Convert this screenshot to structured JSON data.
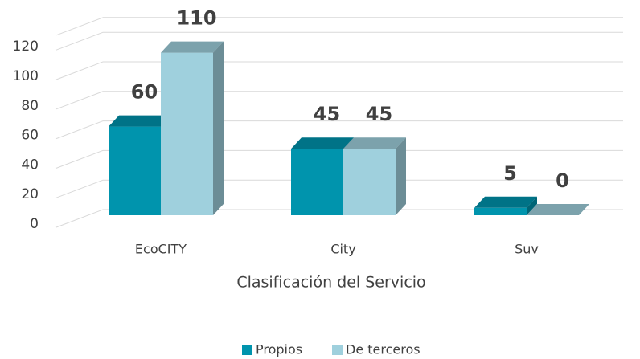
{
  "chart_data": {
    "type": "bar3d",
    "x_label": "Clasificación del Servicio",
    "categories": [
      "EcoCITY",
      "City",
      "Suv"
    ],
    "series": [
      {
        "name": "Propios",
        "color": "#0094ad",
        "values": [
          60,
          45,
          5
        ]
      },
      {
        "name": "De terceros",
        "color": "#9fd0dd",
        "values": [
          110,
          45,
          0
        ]
      }
    ],
    "ylim": [
      0,
      130
    ],
    "yticks": [
      0,
      20,
      40,
      60,
      80,
      100,
      120
    ],
    "grid": true,
    "legend": "bottom"
  }
}
